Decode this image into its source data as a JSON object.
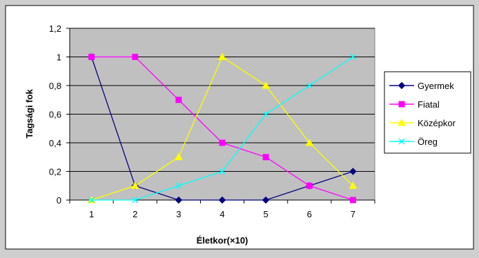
{
  "chart_data": {
    "type": "line",
    "title": "",
    "xlabel": "Életkor(×10)",
    "ylabel": "Tagsági fok",
    "x": [
      1,
      2,
      3,
      4,
      5,
      6,
      7
    ],
    "ylim": [
      0,
      1.2
    ],
    "yticks": [
      "0",
      "0,2",
      "0,4",
      "0,6",
      "0,8",
      "1",
      "1,2"
    ],
    "grid": true,
    "legend_position": "right",
    "series": [
      {
        "name": "Gyermek",
        "values": [
          1,
          0.1,
          0,
          0,
          0,
          0.1,
          0.2
        ],
        "color": "#000080",
        "marker": "diamond"
      },
      {
        "name": "Fiatal",
        "values": [
          1,
          1,
          0.7,
          0.4,
          0.3,
          0.1,
          0
        ],
        "color": "#ff00ff",
        "marker": "square"
      },
      {
        "name": "Középkor",
        "values": [
          0,
          0.1,
          0.3,
          1,
          0.8,
          0.4,
          0.1
        ],
        "color": "#ffff00",
        "marker": "triangle"
      },
      {
        "name": "Öreg",
        "values": [
          0,
          0,
          0.1,
          0.2,
          0.6,
          0.8,
          1
        ],
        "color": "#00ffff",
        "marker": "x"
      }
    ]
  }
}
